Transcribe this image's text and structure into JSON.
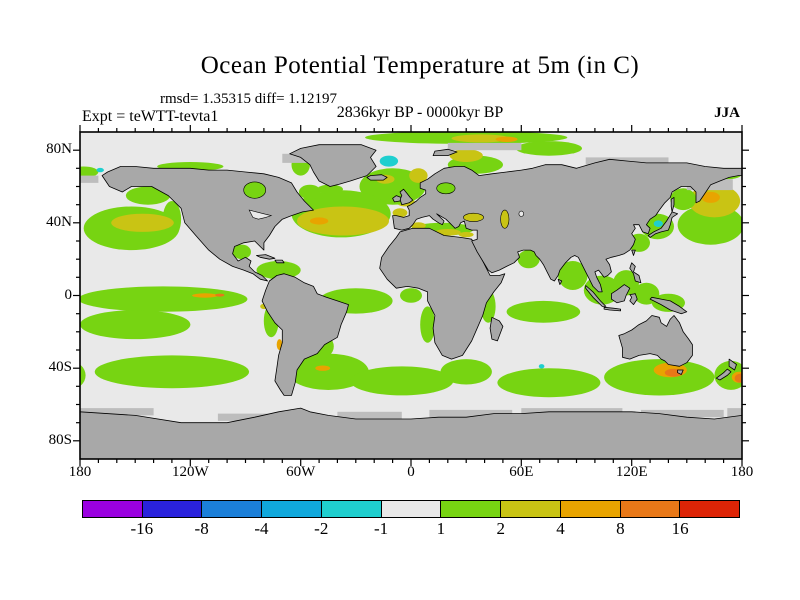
{
  "header": {
    "title": "Ocean Potential Temperature at 5m (in C)",
    "stats_line": "rmsd= 1.35315 diff= 1.12197",
    "period_line": "2836kyr BP - 0000kyr BP",
    "experiment_line": "Expt = teWTT-tevta1",
    "season": "JJA"
  },
  "chart_data": {
    "type": "heatmap",
    "subtype": "filled-contour world map, equirectangular projection, lon -180..180, lat 90N..90S",
    "title": "Ocean Potential Temperature at 5m (in C)",
    "annotations": {
      "rmsd": 1.35315,
      "diff": 1.12197,
      "period": "2836kyr BP - 0000kyr BP",
      "experiment": "teWTT-tevta1",
      "season": "JJA"
    },
    "colorbar": {
      "levels": [
        -16,
        -8,
        -4,
        -2,
        -1,
        1,
        2,
        4,
        8,
        16
      ],
      "labels": [
        "-16",
        "-8",
        "-4",
        "-2",
        "-1",
        "1",
        "2",
        "4",
        "8",
        "16"
      ],
      "colors": [
        "#9a00e0",
        "#2a22dd",
        "#1b7fd9",
        "#10a8dc",
        "#1fcfcf",
        "#e9e9e9",
        "#77d412",
        "#c9c414",
        "#e8a400",
        "#e87818",
        "#dd2406"
      ],
      "units": "C"
    },
    "map_colors": {
      "land": "#a8a8a8",
      "sea_ice": "#bdbdbd",
      "ocean_neutral": "#e9e9e9",
      "coastline": "#000000"
    },
    "axes": {
      "lat_ticks": [
        {
          "label": "80N",
          "lat": 80
        },
        {
          "label": "40N",
          "lat": 40
        },
        {
          "label": "0",
          "lat": 0
        },
        {
          "label": "40S",
          "lat": -40
        },
        {
          "label": "80S",
          "lat": -80
        }
      ],
      "lon_ticks": [
        {
          "label": "180",
          "lon": -180
        },
        {
          "label": "120W",
          "lon": -120
        },
        {
          "label": "60W",
          "lon": -60
        },
        {
          "label": "0",
          "lon": 0
        },
        {
          "label": "60E",
          "lon": 60
        },
        {
          "label": "120E",
          "lon": 120
        },
        {
          "label": "180",
          "lon": 180
        }
      ],
      "minor_tick_deg": 10,
      "grid": false
    },
    "anomaly_regions": [
      {
        "name": "arctic-top-band",
        "band": "1 to 2",
        "shape": "ellipse",
        "lon": 30,
        "lat": 87,
        "rlon": 55,
        "rlat": 3.5,
        "color": 6
      },
      {
        "name": "arctic-top-olive",
        "band": "2 to 4",
        "shape": "ellipse",
        "lon": 38,
        "lat": 86.5,
        "rlon": 16,
        "rlat": 2.2,
        "color": 7
      },
      {
        "name": "arctic-top-oryel",
        "band": "4 to 8",
        "shape": "ellipse",
        "lon": 52,
        "lat": 86,
        "rlon": 6,
        "rlat": 1.5,
        "color": 8
      },
      {
        "name": "kara-green",
        "band": "1 to 2",
        "shape": "ellipse",
        "lon": 75,
        "lat": 81,
        "rlon": 18,
        "rlat": 4,
        "color": 6
      },
      {
        "name": "barents-green",
        "band": "1 to 2",
        "shape": "ellipse",
        "lon": 35,
        "lat": 72,
        "rlon": 15,
        "rlat": 5,
        "color": 6
      },
      {
        "name": "barents-olive",
        "band": "2 to 4",
        "shape": "ellipse",
        "lon": 30,
        "lat": 77,
        "rlon": 9,
        "rlat": 3.5,
        "color": 7
      },
      {
        "name": "chukchi-green-w",
        "band": "1 to 2",
        "shape": "ellipse",
        "lon": -178,
        "lat": 68,
        "rlon": 8,
        "rlat": 3,
        "color": 6
      },
      {
        "name": "chukchi-green-e",
        "band": "1 to 2",
        "shape": "ellipse",
        "lon": 172,
        "lat": 67,
        "rlon": 8,
        "rlat": 3,
        "color": 6
      },
      {
        "name": "chukchi-cyan",
        "band": "-2 to -1",
        "shape": "ellipse",
        "lon": -169,
        "lat": 69,
        "rlon": 2,
        "rlat": 1.2,
        "color": 4
      },
      {
        "name": "canada-arctic-green",
        "band": "1 to 2",
        "shape": "ellipse",
        "lon": -120,
        "lat": 71,
        "rlon": 18,
        "rlat": 2.5,
        "color": 6
      },
      {
        "name": "gulf-alaska-green",
        "band": "1 to 2",
        "shape": "ellipse",
        "lon": -143,
        "lat": 55,
        "rlon": 12,
        "rlat": 5,
        "color": 6
      },
      {
        "name": "na-westcoast-green",
        "band": "1 to 2",
        "shape": "ellipse",
        "lon": -130,
        "lat": 42,
        "rlon": 5,
        "rlat": 10,
        "color": 6
      },
      {
        "name": "npac-green-east",
        "band": "1 to 2",
        "shape": "ellipse",
        "lon": -152,
        "lat": 37,
        "rlon": 26,
        "rlat": 12,
        "color": 6
      },
      {
        "name": "npac-olive",
        "band": "2 to 4",
        "shape": "ellipse",
        "lon": -146,
        "lat": 40,
        "rlon": 17,
        "rlat": 5,
        "color": 7
      },
      {
        "name": "npac-green-west",
        "band": "1 to 2",
        "shape": "ellipse",
        "lon": 163,
        "lat": 39,
        "rlon": 18,
        "rlat": 11,
        "color": 6
      },
      {
        "name": "nwpac-olive",
        "band": "2 to 4",
        "shape": "ellipse",
        "lon": 165,
        "lat": 52,
        "rlon": 14,
        "rlat": 9,
        "color": 7
      },
      {
        "name": "kamchatka-oryel",
        "band": "4 to 8",
        "shape": "ellipse",
        "lon": 163,
        "lat": 54,
        "rlon": 5,
        "rlat": 3,
        "color": 8
      },
      {
        "name": "okhotsk-green",
        "band": "1 to 2",
        "shape": "ellipse",
        "lon": 148,
        "lat": 53,
        "rlon": 7,
        "rlat": 6,
        "color": 6
      },
      {
        "name": "japan-green",
        "band": "1 to 2",
        "shape": "ellipse",
        "lon": 134,
        "lat": 38,
        "rlon": 9,
        "rlat": 7,
        "color": 6
      },
      {
        "name": "sea-of-japan-cyan",
        "band": "-2 to -1",
        "shape": "ellipse",
        "lon": 134.5,
        "lat": 39.5,
        "rlon": 2.5,
        "rlat": 1.8,
        "color": 4
      },
      {
        "name": "east-china-green",
        "band": "1 to 2",
        "shape": "ellipse",
        "lon": 124,
        "lat": 29,
        "rlon": 6,
        "rlat": 5,
        "color": 6
      },
      {
        "name": "eq-pacific-green",
        "band": "1 to 2",
        "shape": "ellipse",
        "lon": -135,
        "lat": -2,
        "rlon": 46,
        "rlat": 7,
        "color": 6
      },
      {
        "name": "eq-pacific-oryel",
        "band": "4 to 8",
        "shape": "ellipse",
        "lon": -112,
        "lat": 0,
        "rlon": 7,
        "rlat": 1.2,
        "color": 8
      },
      {
        "name": "eq-pacific-orange",
        "band": "8 to 16",
        "shape": "ellipse",
        "lon": -104,
        "lat": 0.2,
        "rlon": 2.5,
        "rlat": 0.8,
        "color": 9
      },
      {
        "name": "s-trop-pacific-green",
        "band": "1 to 2",
        "shape": "ellipse",
        "lon": -150,
        "lat": -16,
        "rlon": 30,
        "rlat": 8,
        "color": 6
      },
      {
        "name": "s-pacific-band-green",
        "band": "1 to 2",
        "shape": "ellipse",
        "lon": -130,
        "lat": -42,
        "rlon": 42,
        "rlat": 9,
        "color": 6
      },
      {
        "name": "argentine-basin-green",
        "band": "1 to 2",
        "shape": "ellipse",
        "lon": -45,
        "lat": -42,
        "rlon": 22,
        "rlat": 10,
        "color": 6
      },
      {
        "name": "brazil-coast-green",
        "band": "1 to 2",
        "shape": "ellipse",
        "lon": -50,
        "lat": -28,
        "rlon": 8,
        "rlat": 7,
        "color": 6
      },
      {
        "name": "satl-oryel-speck",
        "band": "4 to 8",
        "shape": "ellipse",
        "lon": -48,
        "lat": -40,
        "rlon": 4,
        "rlat": 1.5,
        "color": 8
      },
      {
        "name": "s-atlantic-band-green",
        "band": "1 to 2",
        "shape": "ellipse",
        "lon": -5,
        "lat": -47,
        "rlon": 28,
        "rlat": 8,
        "color": 6
      },
      {
        "name": "agulhas-green",
        "band": "1 to 2",
        "shape": "ellipse",
        "lon": 30,
        "lat": -42,
        "rlon": 14,
        "rlat": 7,
        "color": 6
      },
      {
        "name": "s-indian-band-green",
        "band": "1 to 2",
        "shape": "ellipse",
        "lon": 75,
        "lat": -48,
        "rlon": 28,
        "rlat": 8,
        "color": 6
      },
      {
        "name": "s-australia-green",
        "band": "1 to 2",
        "shape": "ellipse",
        "lon": 135,
        "lat": -45,
        "rlon": 30,
        "rlat": 10,
        "color": 6
      },
      {
        "name": "s-australia-oryel",
        "band": "4 to 8",
        "shape": "ellipse",
        "lon": 141,
        "lat": -41,
        "rlon": 9,
        "rlat": 4,
        "color": 8
      },
      {
        "name": "s-australia-orange",
        "band": "8 to 16",
        "shape": "ellipse",
        "lon": 143,
        "lat": -42.5,
        "rlon": 5,
        "rlat": 2.2,
        "color": 9
      },
      {
        "name": "nz-green",
        "band": "1 to 2",
        "shape": "ellipse",
        "lon": 174,
        "lat": -44,
        "rlon": 9,
        "rlat": 8,
        "color": 6
      },
      {
        "name": "nz-green-wrap",
        "band": "1 to 2",
        "shape": "ellipse",
        "lon": -186,
        "lat": -44,
        "rlon": 9,
        "rlat": 8,
        "color": 6
      },
      {
        "name": "nz-east-oryel",
        "band": "4 to 8",
        "shape": "ellipse",
        "lon": 178.5,
        "lat": -45,
        "rlon": 4,
        "rlat": 3,
        "color": 8
      },
      {
        "name": "nz-east-orange",
        "band": "8 to 16",
        "shape": "ellipse",
        "lon": 179,
        "lat": -45.5,
        "rlon": 3,
        "rlat": 2.5,
        "color": 9
      },
      {
        "name": "bay-of-bengal-green",
        "band": "1 to 2",
        "shape": "ellipse",
        "lon": 88,
        "lat": 11,
        "rlon": 8,
        "rlat": 8,
        "color": 6
      },
      {
        "name": "se-asia-green",
        "band": "1 to 2",
        "shape": "ellipse",
        "lon": 104,
        "lat": 3,
        "rlon": 10,
        "rlat": 8,
        "color": 6
      },
      {
        "name": "philippine-green",
        "band": "1 to 2",
        "shape": "ellipse",
        "lon": 117,
        "lat": 7,
        "rlon": 7,
        "rlat": 7,
        "color": 6
      },
      {
        "name": "moluccas-green",
        "band": "1 to 2",
        "shape": "ellipse",
        "lon": 128,
        "lat": 1,
        "rlon": 7,
        "rlat": 6,
        "color": 6
      },
      {
        "name": "n-newguinea-green",
        "band": "1 to 2",
        "shape": "ellipse",
        "lon": 140,
        "lat": -4,
        "rlon": 9,
        "rlat": 5,
        "color": 6
      },
      {
        "name": "arabian-sea-green",
        "band": "1 to 2",
        "shape": "ellipse",
        "lon": 64,
        "lat": 20,
        "rlon": 6,
        "rlat": 5,
        "color": 6
      },
      {
        "name": "red-sea-green",
        "band": "1 to 2",
        "shape": "poly",
        "points": [
          [
            33,
            28
          ],
          [
            36,
            23
          ],
          [
            40,
            15
          ],
          [
            42,
            12
          ],
          [
            40,
            12
          ],
          [
            36,
            21
          ],
          [
            32,
            27
          ]
        ],
        "color": 6
      },
      {
        "name": "persian-gulf-green",
        "band": "1 to 2",
        "shape": "ellipse",
        "lon": 51,
        "lat": 27.5,
        "rlon": 3.5,
        "rlat": 2,
        "color": 6
      },
      {
        "name": "s-trop-indian-green",
        "band": "1 to 2",
        "shape": "ellipse",
        "lon": 72,
        "lat": -9,
        "rlon": 20,
        "rlat": 6,
        "color": 6
      },
      {
        "name": "e-africa-green",
        "band": "1 to 2",
        "shape": "ellipse",
        "lon": 42,
        "lat": -6,
        "rlon": 4,
        "rlat": 9,
        "color": 6
      },
      {
        "name": "benguela-green",
        "band": "1 to 2",
        "shape": "ellipse",
        "lon": 9,
        "lat": -16,
        "rlon": 4,
        "rlat": 10,
        "color": 6
      },
      {
        "name": "indian-ocean-cyan",
        "band": "-2 to -1",
        "shape": "ellipse",
        "lon": 71,
        "lat": -39,
        "rlon": 1.5,
        "rlat": 1.2,
        "color": 4
      },
      {
        "name": "mediterranean-green",
        "band": "1 to 2",
        "shape": "ellipse",
        "lon": 17,
        "lat": 36.5,
        "rlon": 17,
        "rlat": 3.5,
        "color": 6
      },
      {
        "name": "med-olive-west",
        "band": "2 to 4",
        "shape": "ellipse",
        "lon": 4,
        "lat": 38.5,
        "rlon": 4,
        "rlat": 1.8,
        "color": 7
      },
      {
        "name": "med-olive-central",
        "band": "2 to 4",
        "shape": "ellipse",
        "lon": 20,
        "lat": 34.8,
        "rlon": 7,
        "rlat": 1.8,
        "color": 7
      },
      {
        "name": "med-olive-east",
        "band": "2 to 4",
        "shape": "ellipse",
        "lon": 30,
        "lat": 33.5,
        "rlon": 4,
        "rlat": 1.5,
        "color": 7
      },
      {
        "name": "biscay-olive",
        "band": "2 to 4",
        "shape": "ellipse",
        "lon": -6,
        "lat": 45.5,
        "rlon": 4,
        "rlat": 2.5,
        "color": 7
      },
      {
        "name": "north-sea-olive",
        "band": "2 to 4",
        "shape": "ellipse",
        "lon": -3,
        "lat": 51.5,
        "rlon": 5,
        "rlat": 2.5,
        "color": 7
      },
      {
        "name": "ne-atlantic-green",
        "band": "1 to 2",
        "shape": "ellipse",
        "lon": -10,
        "lat": 60,
        "rlon": 18,
        "rlat": 10,
        "color": 6
      },
      {
        "name": "norwegian-olive",
        "band": "2 to 4",
        "shape": "ellipse",
        "lon": 4,
        "lat": 66,
        "rlon": 5,
        "rlat": 4,
        "color": 7
      },
      {
        "name": "iceland-olive",
        "band": "2 to 4",
        "shape": "ellipse",
        "lon": -14,
        "lat": 64,
        "rlon": 5,
        "rlat": 2.5,
        "color": 7
      },
      {
        "name": "greenland-sea-cyan",
        "band": "-2 to -1",
        "shape": "ellipse",
        "lon": -12,
        "lat": 74,
        "rlon": 5,
        "rlat": 3,
        "color": 4
      },
      {
        "name": "denmark-strait-oryel",
        "band": "4 to 8",
        "shape": "ellipse",
        "lon": -29,
        "lat": 68.5,
        "rlon": 4,
        "rlat": 2,
        "color": 8
      },
      {
        "name": "denmark-strait-orange",
        "band": "8 to 16",
        "shape": "ellipse",
        "lon": -26,
        "lat": 69.5,
        "rlon": 3,
        "rlat": 1.5,
        "color": 9
      },
      {
        "name": "n-atlantic-green",
        "band": "1 to 2",
        "shape": "ellipse",
        "lon": -38,
        "lat": 45,
        "rlon": 27,
        "rlat": 13,
        "color": 6
      },
      {
        "name": "n-atlantic-olive",
        "band": "2 to 4",
        "shape": "ellipse",
        "lon": -37,
        "lat": 41,
        "rlon": 25,
        "rlat": 8,
        "color": 7
      },
      {
        "name": "n-atlantic-oryel",
        "band": "4 to 8",
        "shape": "ellipse",
        "lon": -50,
        "lat": 41,
        "rlon": 5,
        "rlat": 2,
        "color": 8
      },
      {
        "name": "labrador-green",
        "band": "1 to 2",
        "shape": "ellipse",
        "lon": -55,
        "lat": 57,
        "rlon": 6,
        "rlat": 4,
        "color": 6
      },
      {
        "name": "s-greenland-green",
        "band": "1 to 2",
        "shape": "ellipse",
        "lon": -44,
        "lat": 58.5,
        "rlon": 7,
        "rlat": 2.5,
        "color": 6
      },
      {
        "name": "baffin-green",
        "band": "1 to 2",
        "shape": "ellipse",
        "lon": -60,
        "lat": 72,
        "rlon": 5,
        "rlat": 6,
        "color": 6
      },
      {
        "name": "caribbean-green",
        "band": "1 to 2",
        "shape": "ellipse",
        "lon": -72,
        "lat": 14,
        "rlon": 12,
        "rlat": 5,
        "color": 6
      },
      {
        "name": "gulf-mexico-green",
        "band": "1 to 2",
        "shape": "ellipse",
        "lon": -92,
        "lat": 24,
        "rlon": 5,
        "rlat": 4,
        "color": 6
      },
      {
        "name": "eq-atlantic-green",
        "band": "1 to 2",
        "shape": "ellipse",
        "lon": -30,
        "lat": -3,
        "rlon": 20,
        "rlat": 7,
        "color": 6
      },
      {
        "name": "guinea-green",
        "band": "1 to 2",
        "shape": "ellipse",
        "lon": 0,
        "lat": 0,
        "rlon": 6,
        "rlat": 4,
        "color": 6
      },
      {
        "name": "peru-green",
        "band": "1 to 2",
        "shape": "ellipse",
        "lon": -76,
        "lat": -14,
        "rlon": 4,
        "rlat": 9,
        "color": 6
      },
      {
        "name": "chile-oryel",
        "band": "4 to 8",
        "shape": "ellipse",
        "lon": -71.5,
        "lat": -27,
        "rlon": 1.5,
        "rlat": 3,
        "color": 8
      },
      {
        "name": "peru-olive-speck",
        "band": "2 to 4",
        "shape": "ellipse",
        "lon": -80,
        "lat": -6,
        "rlon": 2,
        "rlat": 1.5,
        "color": 7
      }
    ],
    "lakes": [
      {
        "name": "hudson-bay",
        "fill_band": "1 to 2",
        "shape": "ellipse",
        "lon": -85,
        "lat": 58,
        "rlon": 6,
        "rlat": 4.5,
        "color": 6
      },
      {
        "name": "great-lakes",
        "fill_band": "neutral",
        "shape": "poly",
        "points": [
          [
            -88,
            47
          ],
          [
            -84,
            46
          ],
          [
            -80,
            45
          ],
          [
            -76,
            44
          ],
          [
            -79,
            43
          ],
          [
            -83,
            42
          ],
          [
            -86,
            43
          ]
        ],
        "color": 5
      },
      {
        "name": "baltic-sea",
        "fill_band": "1 to 2",
        "shape": "ellipse",
        "lon": 19,
        "lat": 59,
        "rlon": 5,
        "rlat": 3,
        "color": 6
      },
      {
        "name": "black-sea",
        "fill_band": "2 to 4",
        "shape": "ellipse",
        "lon": 34,
        "lat": 43,
        "rlon": 5.5,
        "rlat": 2.3,
        "color": 7
      },
      {
        "name": "caspian-sea",
        "fill_band": "2 to 4",
        "shape": "ellipse",
        "lon": 51,
        "lat": 42,
        "rlon": 2.3,
        "rlat": 5,
        "color": 7
      },
      {
        "name": "aral-sea",
        "fill_band": "neutral",
        "shape": "ellipse",
        "lon": 60,
        "lat": 45,
        "rlon": 1.3,
        "rlat": 1.5,
        "color": 5
      }
    ]
  }
}
